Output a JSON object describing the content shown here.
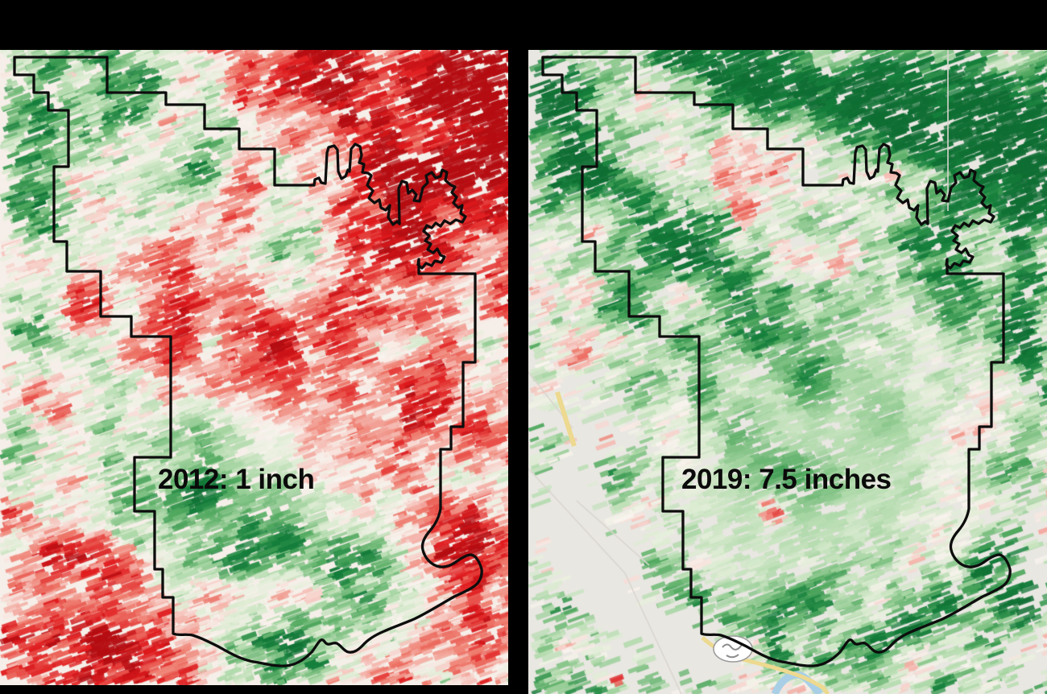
{
  "page": {
    "background": "#000000"
  },
  "panels": [
    {
      "id": "map-2012",
      "label": "2012: 1 inch",
      "theme": "dry-red"
    },
    {
      "id": "map-2019",
      "label": "2019: 7.5 inches",
      "theme": "wet-green"
    }
  ],
  "palette": {
    "strong_red": "#e01a1d",
    "pink": "#f5bdb5",
    "near_white": "#f9f3ee",
    "pale_green": "#dcecd2",
    "mid_green": "#a8d6a4",
    "dark_green": "#15803c",
    "basemap_gray": "#e9e7e2",
    "boundary_black": "#0d0d0d",
    "road_yellow": "#edd98f",
    "river_blue": "#a9cfe6",
    "ramp_stops": [
      [
        -1.3,
        "#b50d12"
      ],
      [
        -0.95,
        "#e01a1d"
      ],
      [
        -0.55,
        "#ee7a6c"
      ],
      [
        -0.28,
        "#f5bdb5"
      ],
      [
        -0.05,
        "#f9f3ee"
      ],
      [
        0.18,
        "#dcecd2"
      ],
      [
        0.45,
        "#a8d6a4"
      ],
      [
        0.72,
        "#55ab62"
      ],
      [
        1.0,
        "#15803c"
      ],
      [
        1.5,
        "#0f6e33"
      ]
    ]
  }
}
